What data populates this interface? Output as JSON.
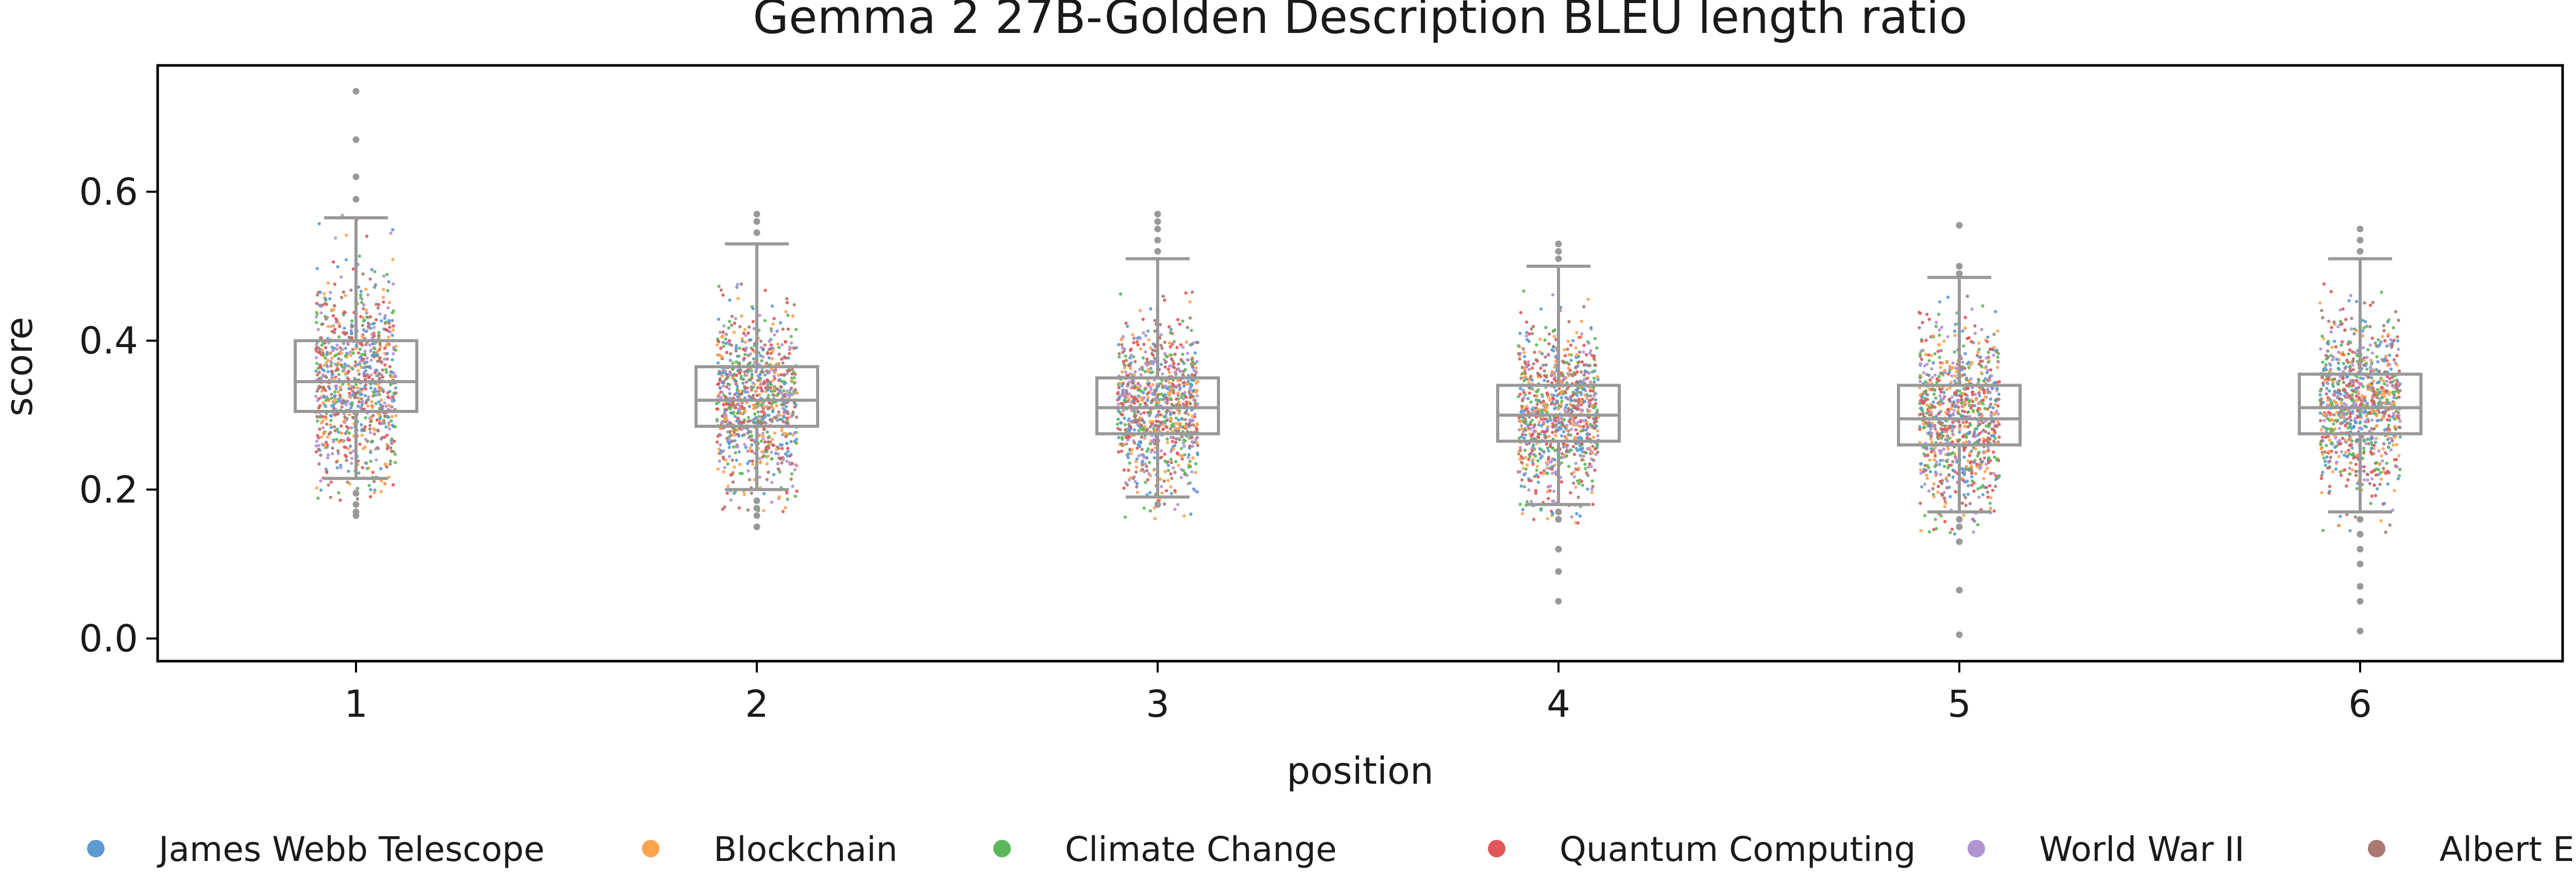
{
  "chart_data": {
    "type": "box",
    "overlay": "strip",
    "title": "Gemma 2 27B-Golden Description BLEU length ratio",
    "xlabel": "position",
    "ylabel": "score",
    "categories": [
      "1",
      "2",
      "3",
      "4",
      "5",
      "6"
    ],
    "ylim": [
      -0.03,
      0.77
    ],
    "yticks": [
      0.0,
      0.2,
      0.4,
      0.6
    ],
    "ytick_labels": [
      "0.0",
      "0.2",
      "0.4",
      "0.6"
    ],
    "grid": false,
    "legend_position": "bottom",
    "series": [
      {
        "name": "James Webb Telescope",
        "color": "#5b9bd0"
      },
      {
        "name": "Blockchain",
        "color": "#ffa34f"
      },
      {
        "name": "Climate Change",
        "color": "#5cb85c"
      },
      {
        "name": "Quantum Computing",
        "color": "#e15759"
      },
      {
        "name": "World War II",
        "color": "#b194d2"
      },
      {
        "name": "Albert Einstein",
        "color": "#a87a72"
      }
    ],
    "boxes": [
      {
        "position": "1",
        "whisker_low": 0.215,
        "q1": 0.305,
        "median": 0.345,
        "q3": 0.4,
        "whisker_high": 0.565,
        "outliers": [
          0.59,
          0.62,
          0.67,
          0.735,
          0.165,
          0.17,
          0.18,
          0.195
        ]
      },
      {
        "position": "2",
        "whisker_low": 0.2,
        "q1": 0.285,
        "median": 0.32,
        "q3": 0.365,
        "whisker_high": 0.53,
        "outliers": [
          0.545,
          0.56,
          0.57,
          0.15,
          0.165,
          0.175,
          0.185
        ]
      },
      {
        "position": "3",
        "whisker_low": 0.19,
        "q1": 0.275,
        "median": 0.31,
        "q3": 0.35,
        "whisker_high": 0.51,
        "outliers": [
          0.52,
          0.535,
          0.55,
          0.56,
          0.57,
          0.18
        ]
      },
      {
        "position": "4",
        "whisker_low": 0.18,
        "q1": 0.265,
        "median": 0.3,
        "q3": 0.34,
        "whisker_high": 0.5,
        "outliers": [
          0.51,
          0.52,
          0.53,
          0.17,
          0.16,
          0.12,
          0.09,
          0.05
        ]
      },
      {
        "position": "5",
        "whisker_low": 0.17,
        "q1": 0.26,
        "median": 0.295,
        "q3": 0.34,
        "whisker_high": 0.485,
        "outliers": [
          0.49,
          0.5,
          0.555,
          0.16,
          0.15,
          0.13,
          0.065,
          0.005
        ]
      },
      {
        "position": "6",
        "whisker_low": 0.17,
        "q1": 0.275,
        "median": 0.31,
        "q3": 0.355,
        "whisker_high": 0.51,
        "outliers": [
          0.52,
          0.535,
          0.55,
          0.16,
          0.14,
          0.12,
          0.1,
          0.07,
          0.05,
          0.01
        ]
      }
    ]
  }
}
